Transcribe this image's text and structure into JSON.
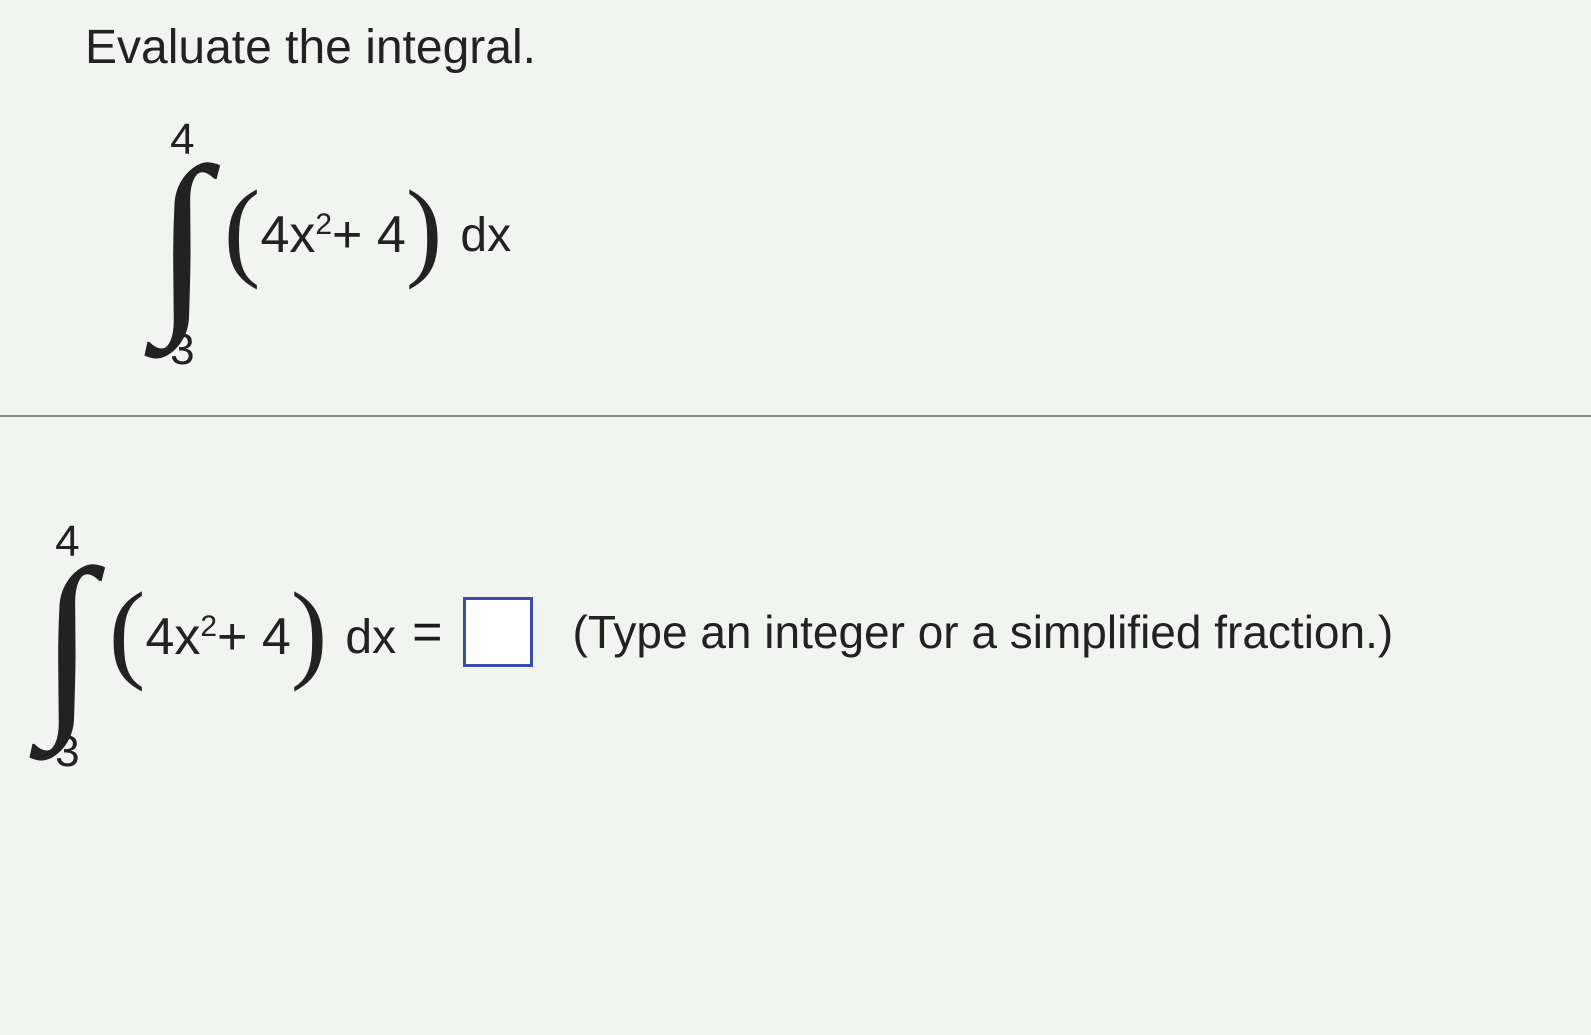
{
  "question": {
    "prompt": "Evaluate the integral.",
    "integral": {
      "upper_bound": "4",
      "lower_bound": "3",
      "paren_open": "(",
      "coef": "4x",
      "exponent": "2",
      "plus_const": " + 4",
      "paren_close": ")",
      "dx": "dx"
    }
  },
  "answer_row": {
    "integral": {
      "upper_bound": "4",
      "lower_bound": "3",
      "paren_open": "(",
      "coef": "4x",
      "exponent": "2",
      "plus_const": " + 4",
      "paren_close": ")",
      "dx": "dx"
    },
    "equals": "=",
    "hint": "(Type an integer or a simplified fraction.)"
  },
  "style": {
    "background_color": "#f2f4f1",
    "text_color": "#1a1a1a",
    "divider_color": "#888888",
    "answer_box_border": "#3a4ea8",
    "answer_box_bg": "#ffffff",
    "prompt_fontsize": 48,
    "integrand_fontsize": 52,
    "hint_fontsize": 46,
    "bounds_fontsize": 44,
    "font_family": "Arial"
  }
}
